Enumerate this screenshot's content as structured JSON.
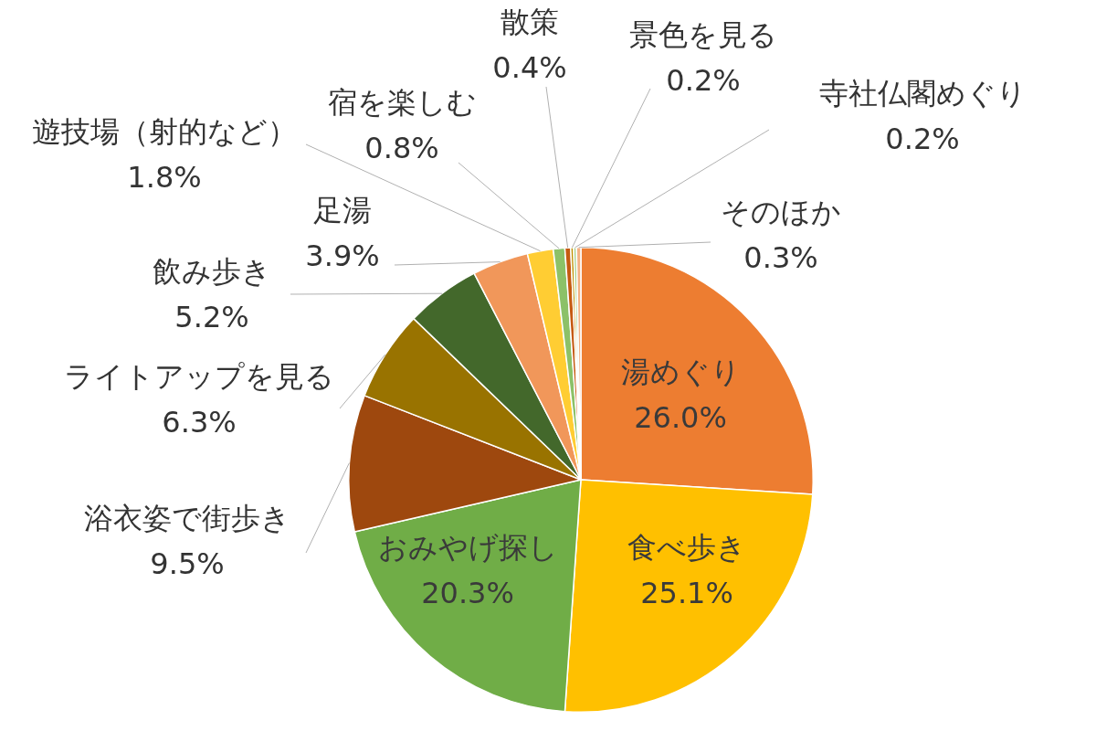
{
  "chart_data": {
    "type": "pie",
    "categories": [
      "湯めぐり",
      "食べ歩き",
      "おみやげ探し",
      "浴衣姿で街歩き",
      "ライトアップを見る",
      "飲み歩き",
      "足湯",
      "遊技場（射的など）",
      "宿を楽しむ",
      "散策",
      "景色を見る",
      "寺社仏閣めぐり",
      "そのほか"
    ],
    "values": [
      26.0,
      25.1,
      20.3,
      9.5,
      6.3,
      5.2,
      3.9,
      1.8,
      0.8,
      0.4,
      0.2,
      0.2,
      0.3
    ],
    "value_labels": [
      "26.0%",
      "25.1%",
      "20.3%",
      "9.5%",
      "6.3%",
      "5.2%",
      "3.9%",
      "1.8%",
      "0.8%",
      "0.4%",
      "0.2%",
      "0.2%",
      "0.3%"
    ],
    "colors": [
      "#ED7D31",
      "#FFC000",
      "#70AD47",
      "#9E480E",
      "#997300",
      "#43682B",
      "#F1975A",
      "#FFCD33",
      "#8CC168",
      "#C55A11",
      "#BF9000",
      "#A9D18E",
      "#F4B183"
    ],
    "data_labels": true
  }
}
